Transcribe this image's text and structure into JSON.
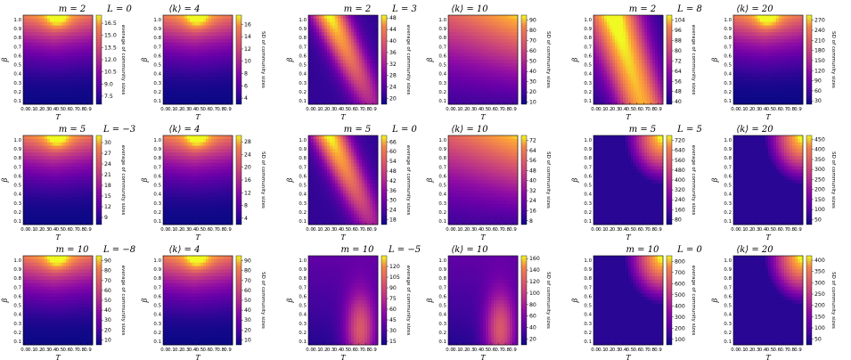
{
  "chart_data": {
    "type": "heatmap",
    "colormap": "plasma",
    "x_ticks": [
      "0.0",
      "0.1",
      "0.2",
      "0.3",
      "0.4",
      "0.5",
      "0.6",
      "0.7",
      "0.8",
      "0.9"
    ],
    "y_ticks": [
      "0.1",
      "0.2",
      "0.3",
      "0.4",
      "0.5",
      "0.6",
      "0.7",
      "0.8",
      "0.9",
      "1.0"
    ],
    "xlabel": "T",
    "ylabel": "β",
    "cb_label_avg": "average of community sizes",
    "cb_label_sd": "SD of community sizes",
    "panels": [
      {
        "title_m": "m = 2",
        "title_L": "L = 0",
        "title_k": "⟨k⟩ = 4",
        "avg": {
          "pattern": "top",
          "ticks": [
            "7.5",
            "9.0",
            "10.5",
            "12.0",
            "13.5",
            "15.0",
            "16.5"
          ],
          "min": 6.5,
          "max": 17.5
        },
        "sd": {
          "pattern": "top",
          "ticks": [
            "4",
            "6",
            "8",
            "10",
            "12",
            "14",
            "16"
          ],
          "min": 3,
          "max": 17.5
        }
      },
      {
        "title_m": "m = 2",
        "title_L": "L = 3",
        "title_k": "⟨k⟩ = 10",
        "avg": {
          "pattern": "band",
          "ticks": [
            "20",
            "24",
            "28",
            "32",
            "36",
            "40",
            "44",
            "48"
          ],
          "min": 18,
          "max": 49
        },
        "sd": {
          "pattern": "topright",
          "ticks": [
            "10",
            "20",
            "30",
            "40",
            "50",
            "60",
            "70",
            "80",
            "90"
          ],
          "min": 8,
          "max": 95
        }
      },
      {
        "title_m": "m = 2",
        "title_L": "L = 8",
        "title_k": "⟨k⟩ = 20",
        "avg": {
          "pattern": "wide",
          "ticks": [
            "40",
            "48",
            "56",
            "64",
            "72",
            "80",
            "88",
            "96",
            "104"
          ],
          "min": 38,
          "max": 108
        },
        "sd": {
          "pattern": "top",
          "ticks": [
            "30",
            "60",
            "90",
            "120",
            "150",
            "180",
            "210",
            "240",
            "270"
          ],
          "min": 20,
          "max": 285
        }
      },
      {
        "title_m": "m = 5",
        "title_L": "L = −3",
        "title_k": "⟨k⟩ = 4",
        "avg": {
          "pattern": "top",
          "ticks": [
            "9",
            "12",
            "15",
            "18",
            "21",
            "24",
            "27",
            "30"
          ],
          "min": 7,
          "max": 32
        },
        "sd": {
          "pattern": "top",
          "ticks": [
            "4",
            "8",
            "12",
            "16",
            "20",
            "24",
            "28"
          ],
          "min": 2,
          "max": 30
        }
      },
      {
        "title_m": "m = 5",
        "title_L": "L = 0",
        "title_k": "⟨k⟩ = 10",
        "avg": {
          "pattern": "band",
          "ticks": [
            "18",
            "24",
            "30",
            "36",
            "42",
            "48",
            "54",
            "60",
            "66"
          ],
          "min": 15,
          "max": 70
        },
        "sd": {
          "pattern": "topright",
          "ticks": [
            "8",
            "16",
            "24",
            "32",
            "40",
            "48",
            "56",
            "64",
            "72"
          ],
          "min": 5,
          "max": 76
        }
      },
      {
        "title_m": "m = 5",
        "title_L": "L = 5",
        "title_k": "⟨k⟩ = 20",
        "avg": {
          "pattern": "corner",
          "ticks": [
            "80",
            "160",
            "240",
            "320",
            "400",
            "480",
            "560",
            "640",
            "720"
          ],
          "min": 40,
          "max": 760
        },
        "sd": {
          "pattern": "corner",
          "ticks": [
            "50",
            "100",
            "150",
            "200",
            "250",
            "300",
            "350",
            "400",
            "450"
          ],
          "min": 25,
          "max": 470
        }
      },
      {
        "title_m": "m = 10",
        "title_L": "L = −8",
        "title_k": "⟨k⟩ = 4",
        "avg": {
          "pattern": "top",
          "ticks": [
            "10",
            "20",
            "30",
            "40",
            "50",
            "60",
            "70",
            "80",
            "90"
          ],
          "min": 5,
          "max": 95
        },
        "sd": {
          "pattern": "top",
          "ticks": [
            "10",
            "20",
            "30",
            "40",
            "50",
            "60",
            "70",
            "80",
            "90"
          ],
          "min": 5,
          "max": 95
        }
      },
      {
        "title_m": "m = 10",
        "title_L": "L = −5",
        "title_k": "⟨k⟩ = 10",
        "avg": {
          "pattern": "faint",
          "ticks": [
            "15",
            "30",
            "45",
            "60",
            "75",
            "90",
            "105",
            "120"
          ],
          "min": 10,
          "max": 135
        },
        "sd": {
          "pattern": "faint",
          "ticks": [
            "20",
            "40",
            "60",
            "80",
            "100",
            "120",
            "140",
            "160"
          ],
          "min": 10,
          "max": 165
        }
      },
      {
        "title_m": "m = 10",
        "title_L": "L = 0",
        "title_k": "⟨k⟩ = 20",
        "avg": {
          "pattern": "corner",
          "ticks": [
            "100",
            "200",
            "300",
            "400",
            "500",
            "600",
            "700",
            "800"
          ],
          "min": 50,
          "max": 850
        },
        "sd": {
          "pattern": "corner",
          "ticks": [
            "50",
            "100",
            "150",
            "200",
            "250",
            "300",
            "350",
            "400"
          ],
          "min": 25,
          "max": 420
        }
      }
    ]
  }
}
